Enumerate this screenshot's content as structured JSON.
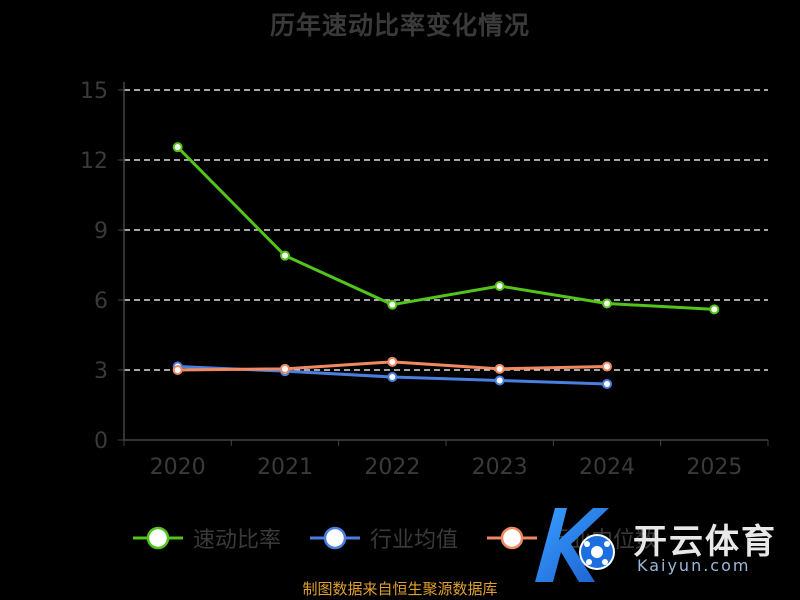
{
  "title": "历年速动比率变化情况",
  "source_note": "制图数据来自恒生聚源数据库",
  "watermark": {
    "brand": "开云体育",
    "url": "Kaiyun.com"
  },
  "chart_data": {
    "type": "line",
    "title": "历年速动比率变化情况",
    "xlabel": "",
    "ylabel": "",
    "categories": [
      "2020",
      "2021",
      "2022",
      "2023",
      "2024",
      "2025"
    ],
    "ylim": [
      0,
      15
    ],
    "yticks": [
      0,
      3,
      6,
      9,
      12,
      15
    ],
    "grid": "horizontal-dashed",
    "legend_position": "bottom",
    "series": [
      {
        "name": "速动比率",
        "color": "#52c41a",
        "values": [
          12.55,
          7.9,
          5.8,
          6.6,
          5.85,
          5.6
        ]
      },
      {
        "name": "行业均值",
        "color": "#4a7fe0",
        "values": [
          3.15,
          2.95,
          2.7,
          2.55,
          2.4,
          null
        ]
      },
      {
        "name": "行业中位数",
        "color": "#f08860",
        "values": [
          3.0,
          3.05,
          3.35,
          3.05,
          3.15,
          null
        ]
      }
    ]
  }
}
